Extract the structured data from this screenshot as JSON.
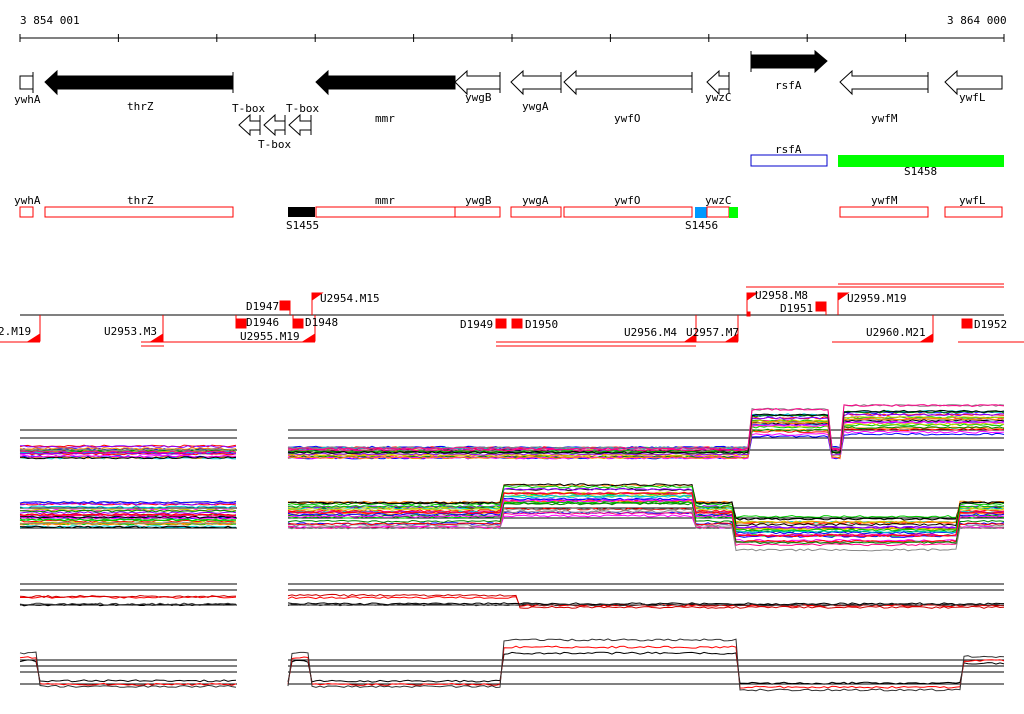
{
  "axis": {
    "start_label": "3 854 001",
    "end_label": "3 864 000"
  },
  "colors": {
    "red": "#ff0000",
    "green": "#00ff00",
    "blue": "#0000cc",
    "cyan_blue": "#0099ff",
    "black": "#000000"
  },
  "genes": [
    {
      "name": "ywhA",
      "strand": "+box",
      "fill": "white"
    },
    {
      "name": "thrZ",
      "strand": "-",
      "fill": "black"
    },
    {
      "name": "T-box",
      "strand": "-",
      "fill": "white"
    },
    {
      "name": "T-box",
      "strand": "-",
      "fill": "white"
    },
    {
      "name": "T-box",
      "strand": "-",
      "fill": "white"
    },
    {
      "name": "mmr",
      "strand": "-",
      "fill": "black"
    },
    {
      "name": "ywgB",
      "strand": "-",
      "fill": "white"
    },
    {
      "name": "ywgA",
      "strand": "-",
      "fill": "white"
    },
    {
      "name": "ywfO",
      "strand": "-",
      "fill": "white"
    },
    {
      "name": "ywzC",
      "strand": "-",
      "fill": "white"
    },
    {
      "name": "rsfA",
      "strand": "+",
      "fill": "black"
    },
    {
      "name": "ywfM",
      "strand": "-",
      "fill": "white"
    },
    {
      "name": "ywfL",
      "strand": "-",
      "fill": "white"
    }
  ],
  "track2": [
    {
      "name": "rsfA",
      "type": "outline-blue"
    },
    {
      "name": "S1458",
      "type": "filled-green"
    }
  ],
  "track3": [
    {
      "name": "ywhA"
    },
    {
      "name": "thrZ"
    },
    {
      "name": "S1455"
    },
    {
      "name": "mmr"
    },
    {
      "name": "ywgB"
    },
    {
      "name": "ywgA"
    },
    {
      "name": "ywfO"
    },
    {
      "name": "S1456"
    },
    {
      "name": "ywzC"
    },
    {
      "name": "ywfM"
    },
    {
      "name": "ywfL"
    }
  ],
  "signals": [
    "2.M19",
    "U2953.M3",
    "D1946",
    "D1947",
    "U2955.M19",
    "D1948",
    "U2954.M15",
    "D1949",
    "D1950",
    "U2956.M4",
    "U2957.M7",
    "U2958.M8",
    "D1951",
    "U2959.M19",
    "U2960.M21",
    "D1952"
  ]
}
